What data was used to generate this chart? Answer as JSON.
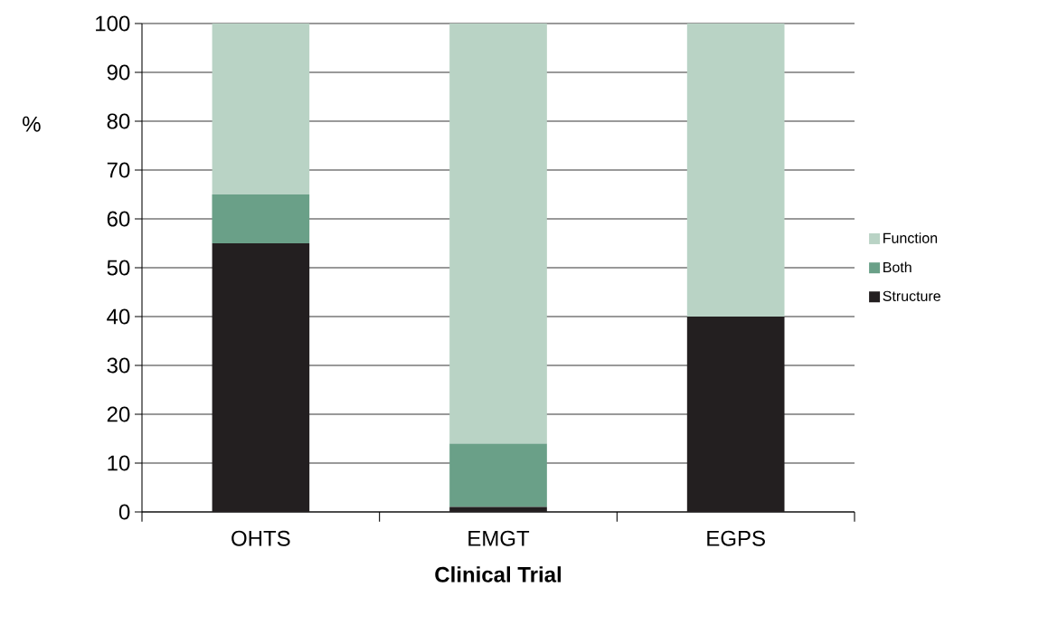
{
  "chart_data": {
    "type": "bar",
    "stacked": true,
    "categories": [
      "OHTS",
      "EMGT",
      "EGPS"
    ],
    "series": [
      {
        "name": "Structure",
        "color": "#231f20",
        "values": [
          55,
          1,
          40
        ]
      },
      {
        "name": "Both",
        "color": "#6aa088",
        "values": [
          10,
          13,
          0
        ]
      },
      {
        "name": "Function",
        "color": "#b9d3c5",
        "values": [
          35,
          86,
          60
        ]
      }
    ],
    "xlabel": "Clinical Trial",
    "ylabel": "%",
    "ylim": [
      0,
      100
    ],
    "yticks": [
      0,
      10,
      20,
      30,
      40,
      50,
      60,
      70,
      80,
      90,
      100
    ],
    "grid": "y",
    "legend": "right"
  }
}
